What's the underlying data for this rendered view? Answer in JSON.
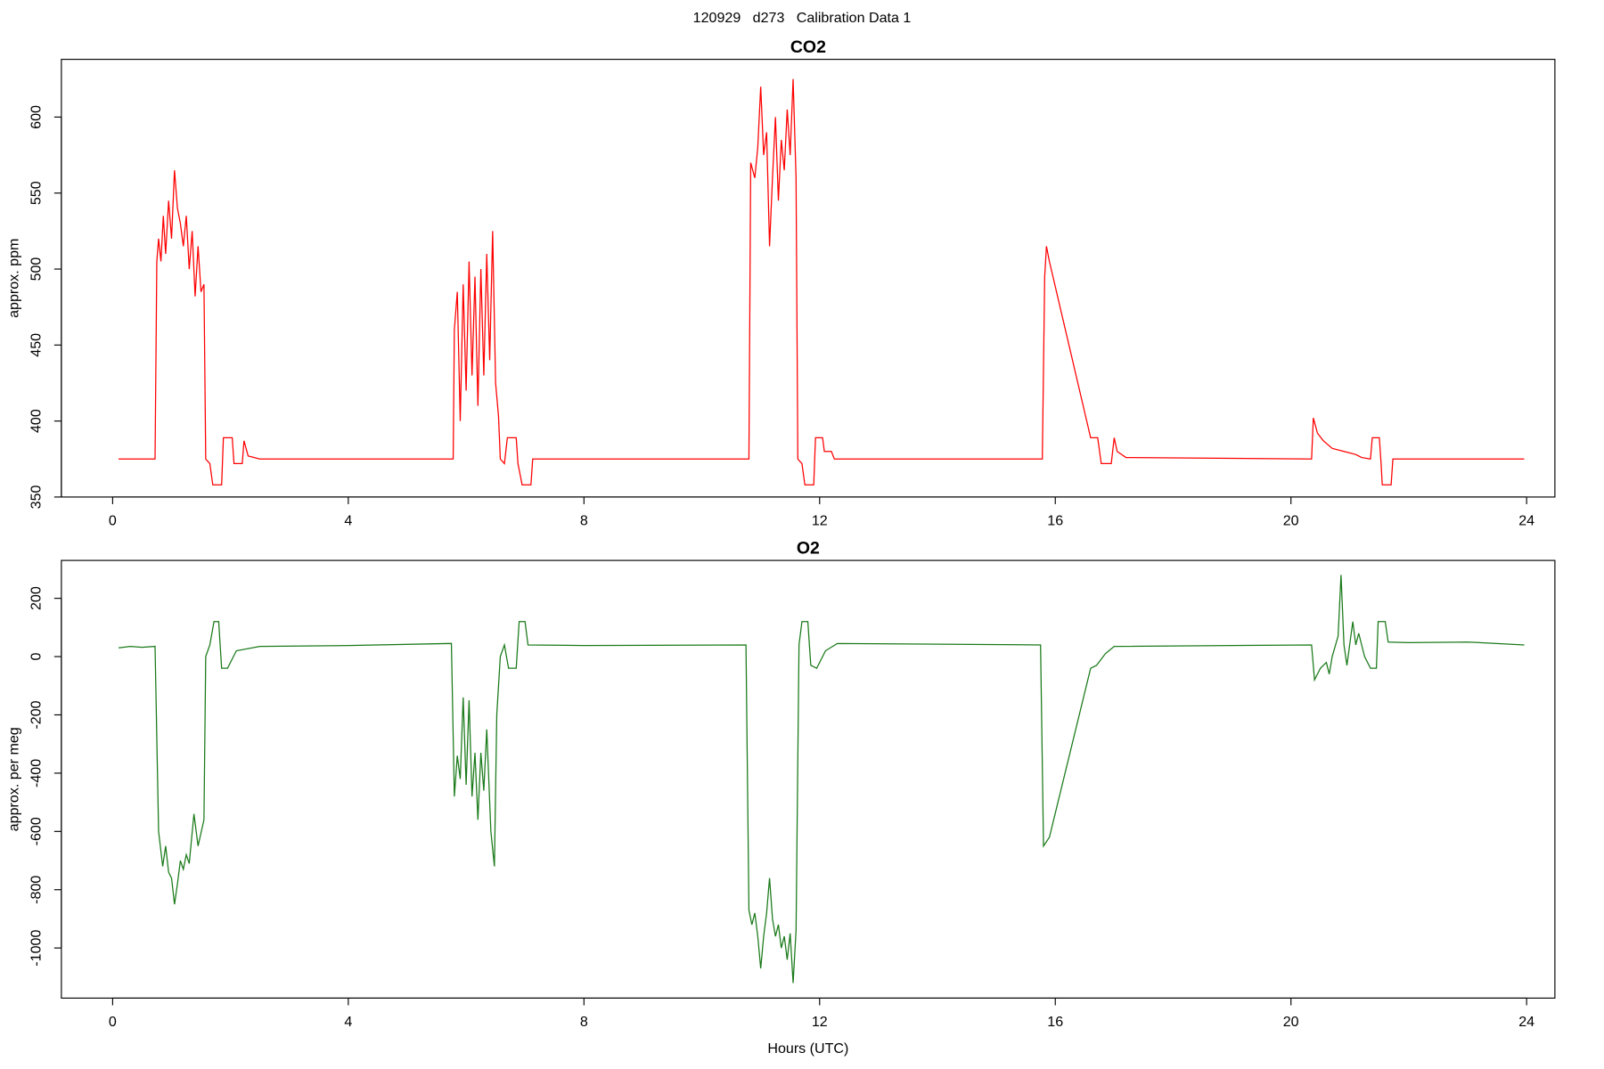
{
  "title": "120929   d273   Calibration Data 1",
  "chart_data": [
    {
      "type": "line",
      "title": "CO2",
      "y_label": "approx. ppm",
      "xlim": [
        -0.87,
        24.48
      ],
      "ylim": [
        350,
        638
      ],
      "xticks": [
        0,
        4,
        8,
        12,
        16,
        20,
        24
      ],
      "yticks": [
        350,
        400,
        450,
        500,
        550,
        600
      ],
      "x": [
        0.1,
        0.72,
        0.75,
        0.78,
        0.82,
        0.86,
        0.9,
        0.95,
        1.0,
        1.05,
        1.1,
        1.15,
        1.2,
        1.25,
        1.3,
        1.35,
        1.4,
        1.45,
        1.5,
        1.55,
        1.58,
        1.65,
        1.7,
        1.85,
        1.88,
        2.03,
        2.06,
        2.2,
        2.23,
        2.3,
        2.5,
        5.78,
        5.8,
        5.85,
        5.9,
        5.95,
        6.0,
        6.05,
        6.1,
        6.15,
        6.2,
        6.25,
        6.3,
        6.35,
        6.4,
        6.45,
        6.5,
        6.55,
        6.58,
        6.65,
        6.7,
        6.85,
        6.88,
        6.95,
        7.1,
        7.13,
        10.8,
        10.83,
        10.9,
        10.95,
        11.0,
        11.05,
        11.1,
        11.15,
        11.2,
        11.25,
        11.3,
        11.35,
        11.4,
        11.45,
        11.5,
        11.55,
        11.6,
        11.63,
        11.7,
        11.75,
        11.9,
        11.93,
        12.05,
        12.08,
        12.2,
        12.25,
        15.78,
        15.82,
        15.85,
        15.9,
        16.6,
        16.72,
        16.78,
        16.95,
        17.0,
        17.05,
        17.2,
        20.35,
        20.38,
        20.45,
        20.55,
        20.7,
        20.9,
        21.1,
        21.2,
        21.35,
        21.38,
        21.5,
        21.53,
        21.55,
        21.7,
        21.73,
        23.96
      ],
      "series": [
        {
          "color": "#ff0000",
          "values": [
            375,
            375,
            505,
            520,
            505,
            535,
            510,
            545,
            520,
            565,
            540,
            530,
            515,
            535,
            500,
            525,
            482,
            515,
            485,
            490,
            375,
            372,
            358,
            358,
            389,
            389,
            372,
            372,
            387,
            377,
            375,
            375,
            460,
            485,
            400,
            490,
            420,
            505,
            430,
            495,
            410,
            500,
            430,
            510,
            440,
            525,
            425,
            403,
            375,
            372,
            389,
            389,
            372,
            358,
            358,
            375,
            375,
            570,
            560,
            580,
            620,
            575,
            590,
            515,
            560,
            600,
            545,
            585,
            565,
            605,
            575,
            625,
            560,
            375,
            372,
            358,
            358,
            389,
            389,
            380,
            380,
            375,
            375,
            495,
            515,
            505,
            389,
            389,
            372,
            372,
            389,
            380,
            376,
            375,
            402,
            392,
            387,
            382,
            380,
            378,
            376,
            375,
            389,
            389,
            372,
            358,
            358,
            375,
            375
          ]
        }
      ]
    },
    {
      "type": "line",
      "title": "O2",
      "y_label": "approx. per meg",
      "x_label": "Hours (UTC)",
      "xlim": [
        -0.87,
        24.48
      ],
      "ylim": [
        -1172,
        330
      ],
      "xticks": [
        0,
        4,
        8,
        12,
        16,
        20,
        24
      ],
      "yticks": [
        -1000,
        -800,
        -600,
        -400,
        -200,
        0,
        200
      ],
      "x": [
        0.1,
        0.3,
        0.5,
        0.72,
        0.78,
        0.85,
        0.9,
        0.95,
        1.0,
        1.05,
        1.1,
        1.15,
        1.2,
        1.25,
        1.3,
        1.38,
        1.45,
        1.55,
        1.58,
        1.65,
        1.72,
        1.8,
        1.85,
        1.95,
        2.1,
        2.5,
        4,
        5.75,
        5.8,
        5.85,
        5.9,
        5.95,
        6.0,
        6.05,
        6.1,
        6.15,
        6.2,
        6.25,
        6.3,
        6.35,
        6.42,
        6.48,
        6.52,
        6.58,
        6.65,
        6.72,
        6.85,
        6.9,
        7.0,
        7.05,
        8,
        10.75,
        10.8,
        10.85,
        10.9,
        10.95,
        11.0,
        11.05,
        11.1,
        11.15,
        11.2,
        11.25,
        11.3,
        11.35,
        11.4,
        11.45,
        11.5,
        11.55,
        11.6,
        11.65,
        11.7,
        11.8,
        11.85,
        11.95,
        12.1,
        12.3,
        15.75,
        15.8,
        15.9,
        16.6,
        16.7,
        16.85,
        17.0,
        20.35,
        20.4,
        20.5,
        20.6,
        20.65,
        20.7,
        20.8,
        20.85,
        20.9,
        20.95,
        21.05,
        21.1,
        21.15,
        21.25,
        21.35,
        21.45,
        21.48,
        21.6,
        21.65,
        22,
        23,
        23.96
      ],
      "series": [
        {
          "color": "#1a7a1a",
          "values": [
            30,
            35,
            32,
            35,
            -600,
            -720,
            -650,
            -740,
            -760,
            -850,
            -780,
            -700,
            -730,
            -680,
            -710,
            -540,
            -650,
            -560,
            0,
            40,
            120,
            120,
            -40,
            -40,
            20,
            35,
            38,
            45,
            -480,
            -340,
            -420,
            -140,
            -440,
            -150,
            -480,
            -330,
            -560,
            -330,
            -460,
            -250,
            -600,
            -720,
            -200,
            0,
            40,
            -40,
            -40,
            120,
            120,
            40,
            38,
            40,
            -870,
            -920,
            -880,
            -960,
            -1070,
            -960,
            -880,
            -760,
            -900,
            -960,
            -920,
            -1000,
            -960,
            -1040,
            -950,
            -1120,
            -940,
            40,
            120,
            120,
            -30,
            -40,
            20,
            45,
            40,
            -650,
            -620,
            -40,
            -30,
            10,
            35,
            40,
            -80,
            -40,
            -20,
            -60,
            0,
            70,
            280,
            40,
            -30,
            120,
            40,
            80,
            0,
            -40,
            -40,
            120,
            120,
            50,
            48,
            50,
            40
          ]
        }
      ]
    }
  ]
}
